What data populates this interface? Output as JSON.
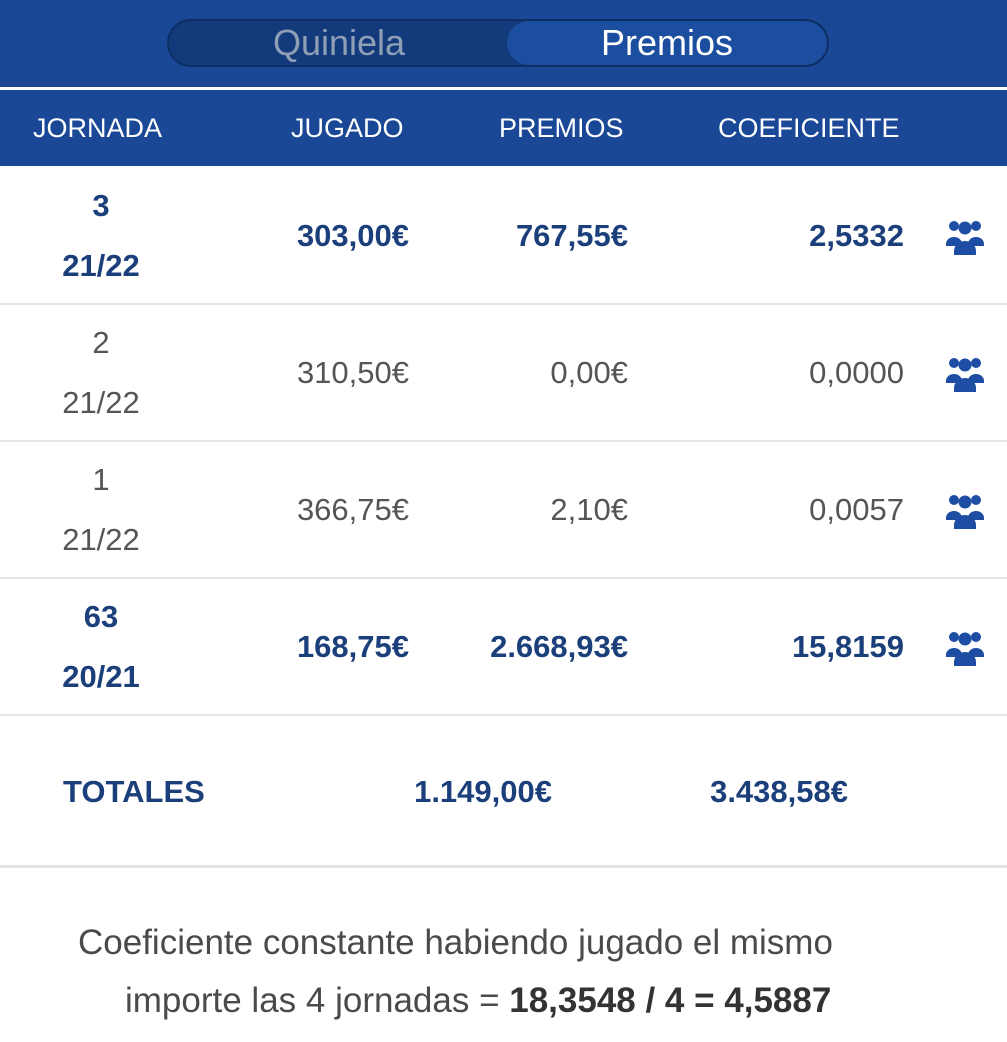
{
  "tabs": [
    {
      "label": "Quiniela",
      "selected": false
    },
    {
      "label": "Premios",
      "selected": true
    }
  ],
  "table": {
    "headers": [
      "JORNADA",
      "JUGADO",
      "PREMIOS",
      "COEFICIENTE"
    ],
    "rows": [
      {
        "jornada": "3",
        "season": "21/22",
        "jugado": "303,00€",
        "premios": "767,55€",
        "coeficiente": "2,5332",
        "highlight": true,
        "icon": "group-icon"
      },
      {
        "jornada": "2",
        "season": "21/22",
        "jugado": "310,50€",
        "premios": "0,00€",
        "coeficiente": "0,0000",
        "highlight": false,
        "icon": "group-icon"
      },
      {
        "jornada": "1",
        "season": "21/22",
        "jugado": "366,75€",
        "premios": "2,10€",
        "coeficiente": "0,0057",
        "highlight": false,
        "icon": "group-icon"
      },
      {
        "jornada": "63",
        "season": "20/21",
        "jugado": "168,75€",
        "premios": "2.668,93€",
        "coeficiente": "15,8159",
        "highlight": true,
        "icon": "group-icon"
      }
    ]
  },
  "totals": {
    "label": "TOTALES",
    "jugado": "1.149,00€",
    "premios": "3.438,58€"
  },
  "note": {
    "line1": "Coeficiente constante habiendo jugado el mismo",
    "line2_prefix": "importe las 4 jornadas = ",
    "formula": "18,3548 / 4 = 4,5887"
  },
  "colors": {
    "header_blue": "#1a4897",
    "text_blue": "#1b3f7a",
    "icon_blue": "#1e4ea3"
  }
}
